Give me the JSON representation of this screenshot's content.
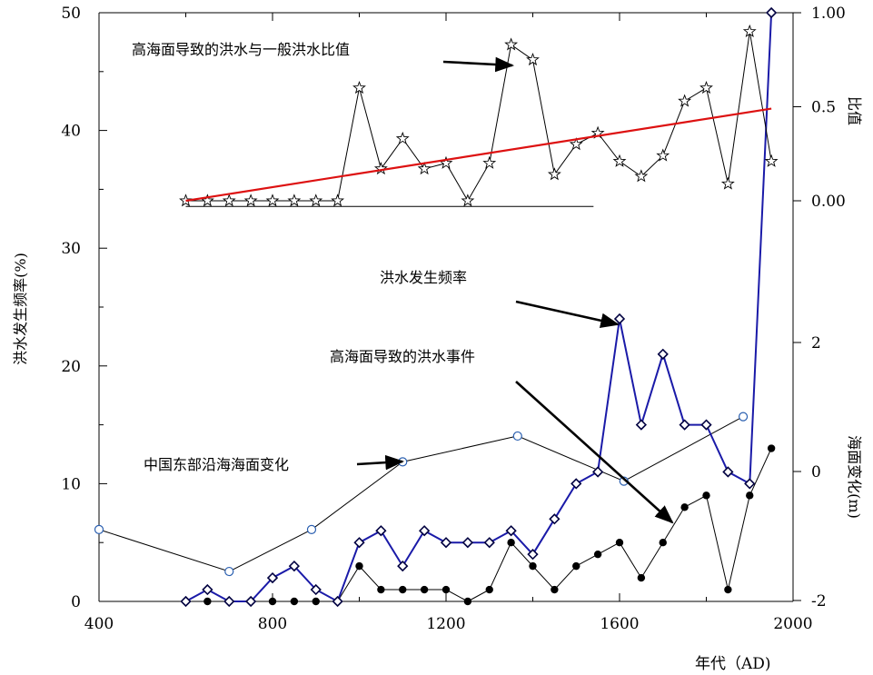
{
  "chart_data": {
    "type": "line",
    "xaxis": {
      "label": "年代（AD)",
      "range": [
        400,
        2000
      ],
      "ticks": [
        "400",
        "800",
        "1200",
        "1600",
        "2000"
      ]
    },
    "left_axis": {
      "label": "洪水发生频率(%)",
      "range": [
        0,
        50
      ],
      "ticks": [
        "0",
        "10",
        "20",
        "30",
        "40",
        "50"
      ]
    },
    "right_axis_ratio": {
      "label": "比值",
      "range": [
        -0.23,
        1.0
      ],
      "ticks": [
        "0.00",
        "0.5",
        "1.00"
      ]
    },
    "right_axis_sea": {
      "label": "海面变化(m)",
      "range": [
        -2,
        3.2
      ],
      "ticks": [
        "-2",
        "0",
        "2"
      ]
    },
    "annotations": {
      "ratio": "高海面导致的洪水与一般洪水比值",
      "frequency": "洪水发生频率",
      "events": "高海面导致的洪水事件",
      "sea": "中国东部沿海海面变化"
    },
    "series": [
      {
        "name": "洪水发生频率",
        "axis": "left",
        "color": "#1a1aa8",
        "marker": "diamond",
        "x": [
          600,
          650,
          700,
          750,
          800,
          850,
          900,
          950,
          1000,
          1050,
          1100,
          1150,
          1200,
          1250,
          1300,
          1350,
          1400,
          1450,
          1500,
          1550,
          1600,
          1650,
          1700,
          1750,
          1800,
          1850,
          1900,
          1950
        ],
        "y": [
          0,
          1,
          0,
          0,
          2,
          3,
          1,
          0,
          5,
          6,
          3,
          6,
          5,
          5,
          5,
          6,
          4,
          7,
          10,
          11,
          24,
          15,
          21,
          15,
          15,
          11,
          10,
          50
        ]
      },
      {
        "name": "高海面导致的洪水事件",
        "axis": "left",
        "color": "#000000",
        "marker": "dot",
        "x": [
          600,
          650,
          700,
          750,
          800,
          850,
          900,
          950,
          1000,
          1050,
          1100,
          1150,
          1200,
          1250,
          1300,
          1350,
          1400,
          1450,
          1500,
          1550,
          1600,
          1650,
          1700,
          1750,
          1800,
          1850,
          1900,
          1950
        ],
        "y": [
          0,
          0,
          0,
          0,
          0,
          0,
          0,
          0,
          3,
          1,
          1,
          1,
          1,
          0,
          1,
          5,
          3,
          1,
          3,
          4,
          5,
          2,
          5,
          8,
          9,
          1,
          9,
          13
        ]
      },
      {
        "name": "高海面导致的洪水与一般洪水比值",
        "axis": "ratio",
        "color": "#000000",
        "marker": "star",
        "x": [
          600,
          650,
          700,
          750,
          800,
          850,
          900,
          950,
          1000,
          1050,
          1100,
          1150,
          1200,
          1250,
          1300,
          1350,
          1400,
          1450,
          1500,
          1550,
          1600,
          1650,
          1700,
          1750,
          1800,
          1850,
          1900,
          1950
        ],
        "y": [
          0,
          0,
          0,
          0,
          0,
          0,
          0,
          0,
          0.6,
          0.17,
          0.33,
          0.17,
          0.2,
          0,
          0.2,
          0.83,
          0.75,
          0.14,
          0.3,
          0.36,
          0.21,
          0.13,
          0.24,
          0.53,
          0.6,
          0.09,
          0.9,
          0.21
        ]
      },
      {
        "name": "中国东部沿海海面变化",
        "axis": "sea",
        "color": "#000000",
        "marker": "circle",
        "x": [
          400,
          700,
          890,
          1100,
          1365,
          1610,
          1885
        ],
        "y": [
          -0.9,
          -1.55,
          -0.9,
          0.15,
          0.55,
          -0.15,
          0.85
        ]
      }
    ],
    "trend_line": {
      "axis": "ratio",
      "color": "#dd1111",
      "x": [
        600,
        1950
      ],
      "y": [
        0.0,
        0.49
      ]
    },
    "zero_line": {
      "axis": "ratio",
      "x": [
        600,
        1540
      ],
      "y": [
        -0.03,
        -0.03
      ]
    }
  }
}
